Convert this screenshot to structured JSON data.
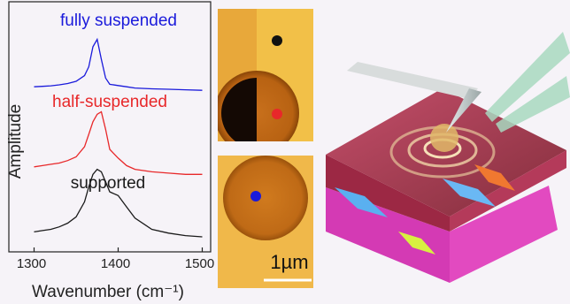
{
  "chart_data": {
    "type": "line",
    "xlabel": "Wavenumber (cm⁻¹)",
    "ylabel": "Amplitude",
    "x": [
      1300,
      1310,
      1320,
      1330,
      1340,
      1350,
      1360,
      1365,
      1370,
      1375,
      1380,
      1385,
      1390,
      1400,
      1410,
      1420,
      1440,
      1460,
      1480,
      1500
    ],
    "series": [
      {
        "name": "fully suspended",
        "color": "#1a1adb",
        "values": [
          66,
          66.2,
          66.4,
          66.8,
          67.3,
          68.2,
          70.5,
          74,
          82,
          85,
          77,
          69.5,
          67,
          66.5,
          66,
          65.5,
          65.2,
          65,
          64.8,
          64.6
        ]
      },
      {
        "name": "half-suspended",
        "color": "#e8282a",
        "values": [
          34,
          34.5,
          35,
          35.5,
          36.5,
          38,
          42,
          47,
          52,
          55,
          56,
          49,
          41,
          37.5,
          34.5,
          33,
          32,
          31.5,
          31,
          31
        ]
      },
      {
        "name": "supported",
        "color": "#1a1a1a",
        "values": [
          8,
          8.5,
          9,
          10,
          11.5,
          14,
          20,
          26,
          31,
          33,
          32,
          28,
          24,
          22.5,
          18,
          13.5,
          9,
          7.5,
          6.5,
          6
        ]
      }
    ],
    "xlim": [
      1270,
      1510
    ],
    "xticks": [
      1300,
      1400,
      1500
    ],
    "ylim": [
      0,
      100
    ]
  },
  "scale_bar_label": "1µm"
}
